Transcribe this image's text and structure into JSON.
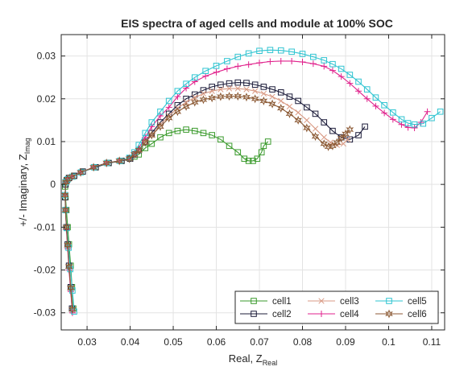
{
  "chart_data": {
    "type": "line",
    "title": "EIS spectra of aged cells and module at 100% SOC",
    "xlabel": {
      "main": "Real, Z",
      "sub": "Real"
    },
    "ylabel": {
      "main": "+/- Imaginary, Z",
      "sub": "Imag"
    },
    "xlim": [
      0.024,
      0.113
    ],
    "ylim": [
      -0.034,
      0.035
    ],
    "xticks": [
      0.03,
      0.04,
      0.05,
      0.06,
      0.07,
      0.08,
      0.09,
      0.1,
      0.11
    ],
    "xtick_labels": [
      "0.03",
      "0.04",
      "0.05",
      "0.06",
      "0.07",
      "0.08",
      "0.09",
      "0.1",
      "0.11"
    ],
    "yticks": [
      -0.03,
      -0.02,
      -0.01,
      0,
      0.01,
      0.02,
      0.03
    ],
    "ytick_labels": [
      "-0.03",
      "-0.02",
      "-0.01",
      "0",
      "0.01",
      "0.02",
      "0.03"
    ],
    "grid": true,
    "legend_position": "bottom-right",
    "legend_columns": 3,
    "series": [
      {
        "name": "cell1",
        "color": "#3a9a2c",
        "marker": "square",
        "x": [
          0.0268,
          0.0265,
          0.0262,
          0.0258,
          0.0255,
          0.0252,
          0.025,
          0.0249,
          0.025,
          0.0253,
          0.0258,
          0.027,
          0.029,
          0.032,
          0.035,
          0.038,
          0.04,
          0.041,
          0.042,
          0.0435,
          0.045,
          0.047,
          0.049,
          0.051,
          0.053,
          0.055,
          0.057,
          0.059,
          0.061,
          0.063,
          0.065,
          0.0665,
          0.0675,
          0.0685,
          0.0695,
          0.0705,
          0.071,
          0.072
        ],
        "y": [
          -0.029,
          -0.024,
          -0.019,
          -0.014,
          -0.01,
          -0.006,
          -0.003,
          -0.0005,
          0.0005,
          0.001,
          0.0015,
          0.002,
          0.003,
          0.004,
          0.005,
          0.0055,
          0.006,
          0.0065,
          0.007,
          0.0085,
          0.0095,
          0.011,
          0.012,
          0.0125,
          0.0128,
          0.0125,
          0.012,
          0.0115,
          0.0105,
          0.009,
          0.0075,
          0.006,
          0.0055,
          0.0055,
          0.006,
          0.0075,
          0.009,
          0.01
        ]
      },
      {
        "name": "cell2",
        "color": "#1c1c3a",
        "marker": "square",
        "x": [
          0.0265,
          0.0262,
          0.0258,
          0.0255,
          0.0252,
          0.025,
          0.0249,
          0.025,
          0.0253,
          0.0258,
          0.027,
          0.029,
          0.032,
          0.035,
          0.038,
          0.04,
          0.041,
          0.042,
          0.0435,
          0.045,
          0.047,
          0.049,
          0.051,
          0.053,
          0.055,
          0.057,
          0.059,
          0.061,
          0.063,
          0.065,
          0.067,
          0.069,
          0.071,
          0.073,
          0.075,
          0.077,
          0.079,
          0.081,
          0.083,
          0.085,
          0.087,
          0.089,
          0.091,
          0.093,
          0.0945
        ],
        "y": [
          -0.029,
          -0.024,
          -0.019,
          -0.014,
          -0.01,
          -0.006,
          -0.003,
          0.0,
          0.001,
          0.0015,
          0.002,
          0.003,
          0.004,
          0.005,
          0.0055,
          0.006,
          0.007,
          0.008,
          0.01,
          0.012,
          0.0145,
          0.0165,
          0.0185,
          0.02,
          0.021,
          0.022,
          0.0228,
          0.0233,
          0.0236,
          0.0238,
          0.0237,
          0.0233,
          0.0228,
          0.0222,
          0.0215,
          0.0205,
          0.0195,
          0.018,
          0.0165,
          0.0145,
          0.0125,
          0.011,
          0.0105,
          0.0115,
          0.0135
        ]
      },
      {
        "name": "cell3",
        "color": "#d99a84",
        "marker": "x",
        "x": [
          0.0267,
          0.0263,
          0.0259,
          0.0255,
          0.0252,
          0.025,
          0.0249,
          0.0251,
          0.0255,
          0.0265,
          0.0285,
          0.0315,
          0.0345,
          0.0375,
          0.0398,
          0.041,
          0.042,
          0.0435,
          0.045,
          0.047,
          0.049,
          0.051,
          0.053,
          0.055,
          0.057,
          0.059,
          0.061,
          0.063,
          0.065,
          0.067,
          0.069,
          0.071,
          0.073,
          0.075,
          0.077,
          0.079,
          0.081,
          0.083,
          0.085,
          0.0865,
          0.088,
          0.0895,
          0.0905
        ],
        "y": [
          -0.0295,
          -0.0245,
          -0.0195,
          -0.0145,
          -0.01,
          -0.006,
          -0.0025,
          0.0005,
          0.0012,
          0.0018,
          0.0028,
          0.004,
          0.005,
          0.0055,
          0.006,
          0.007,
          0.008,
          0.01,
          0.0115,
          0.014,
          0.016,
          0.0178,
          0.0192,
          0.0203,
          0.0212,
          0.0218,
          0.0222,
          0.0224,
          0.0224,
          0.0222,
          0.0218,
          0.0212,
          0.0205,
          0.0195,
          0.0182,
          0.0168,
          0.015,
          0.013,
          0.011,
          0.0098,
          0.0092,
          0.0095,
          0.0105
        ]
      },
      {
        "name": "cell4",
        "color": "#e0228c",
        "marker": "plus",
        "x": [
          0.0266,
          0.0262,
          0.0258,
          0.0255,
          0.0252,
          0.025,
          0.0249,
          0.0251,
          0.0255,
          0.0265,
          0.0285,
          0.0315,
          0.0345,
          0.0375,
          0.0398,
          0.041,
          0.042,
          0.0435,
          0.045,
          0.047,
          0.049,
          0.051,
          0.053,
          0.055,
          0.0575,
          0.06,
          0.0625,
          0.065,
          0.0675,
          0.07,
          0.0725,
          0.075,
          0.0775,
          0.08,
          0.0825,
          0.085,
          0.087,
          0.089,
          0.091,
          0.093,
          0.095,
          0.097,
          0.099,
          0.101,
          0.103,
          0.1045,
          0.106,
          0.1075,
          0.109
        ],
        "y": [
          -0.03,
          -0.025,
          -0.02,
          -0.015,
          -0.0105,
          -0.006,
          -0.0025,
          0.0005,
          0.0012,
          0.0018,
          0.0028,
          0.004,
          0.005,
          0.0055,
          0.006,
          0.007,
          0.0085,
          0.011,
          0.0135,
          0.016,
          0.018,
          0.0205,
          0.0225,
          0.024,
          0.0253,
          0.0262,
          0.027,
          0.0276,
          0.028,
          0.0284,
          0.0287,
          0.0288,
          0.0288,
          0.0286,
          0.0282,
          0.0276,
          0.0266,
          0.0252,
          0.0236,
          0.0218,
          0.02,
          0.0183,
          0.0167,
          0.0152,
          0.014,
          0.0133,
          0.0132,
          0.0145,
          0.017
        ]
      },
      {
        "name": "cell5",
        "color": "#2fc4d1",
        "marker": "square",
        "x": [
          0.027,
          0.0266,
          0.0261,
          0.0257,
          0.0253,
          0.025,
          0.0249,
          0.0251,
          0.0255,
          0.0266,
          0.0286,
          0.0316,
          0.0346,
          0.0376,
          0.0398,
          0.041,
          0.042,
          0.0435,
          0.045,
          0.047,
          0.049,
          0.051,
          0.053,
          0.055,
          0.0575,
          0.06,
          0.0625,
          0.065,
          0.0675,
          0.07,
          0.0725,
          0.075,
          0.0775,
          0.08,
          0.0825,
          0.085,
          0.087,
          0.089,
          0.091,
          0.093,
          0.095,
          0.097,
          0.099,
          0.101,
          0.103,
          0.1045,
          0.106,
          0.108,
          0.11,
          0.112
        ],
        "y": [
          -0.0297,
          -0.0248,
          -0.0198,
          -0.0148,
          -0.0102,
          -0.006,
          -0.0025,
          0.0005,
          0.0012,
          0.0018,
          0.0028,
          0.004,
          0.005,
          0.0055,
          0.0062,
          0.0075,
          0.0092,
          0.012,
          0.0145,
          0.017,
          0.0195,
          0.0218,
          0.0235,
          0.025,
          0.0265,
          0.0277,
          0.0288,
          0.0298,
          0.0306,
          0.0312,
          0.0314,
          0.0313,
          0.031,
          0.0305,
          0.0298,
          0.029,
          0.0281,
          0.027,
          0.0256,
          0.024,
          0.0222,
          0.0203,
          0.0185,
          0.0168,
          0.0152,
          0.0143,
          0.014,
          0.0142,
          0.0155,
          0.017
        ]
      },
      {
        "name": "cell6",
        "color": "#8c5a35",
        "marker": "hexagram",
        "x": [
          0.0266,
          0.0262,
          0.0258,
          0.0255,
          0.0252,
          0.025,
          0.0249,
          0.0251,
          0.0255,
          0.0265,
          0.0285,
          0.0315,
          0.0345,
          0.0375,
          0.0398,
          0.041,
          0.042,
          0.0435,
          0.045,
          0.047,
          0.049,
          0.051,
          0.053,
          0.055,
          0.057,
          0.059,
          0.061,
          0.063,
          0.065,
          0.067,
          0.069,
          0.071,
          0.073,
          0.075,
          0.077,
          0.079,
          0.081,
          0.083,
          0.085,
          0.086,
          0.087,
          0.088,
          0.089,
          0.09,
          0.091
        ],
        "y": [
          -0.0292,
          -0.0242,
          -0.0192,
          -0.0142,
          -0.01,
          -0.006,
          -0.0025,
          0.0005,
          0.0012,
          0.0018,
          0.0028,
          0.004,
          0.005,
          0.0055,
          0.006,
          0.007,
          0.008,
          0.0098,
          0.0115,
          0.0135,
          0.0155,
          0.017,
          0.0182,
          0.0192,
          0.0198,
          0.0202,
          0.0205,
          0.0206,
          0.0206,
          0.0204,
          0.02,
          0.0195,
          0.0188,
          0.0178,
          0.0165,
          0.015,
          0.0132,
          0.0112,
          0.0095,
          0.0088,
          0.009,
          0.0098,
          0.0108,
          0.0118,
          0.0128
        ]
      }
    ]
  }
}
